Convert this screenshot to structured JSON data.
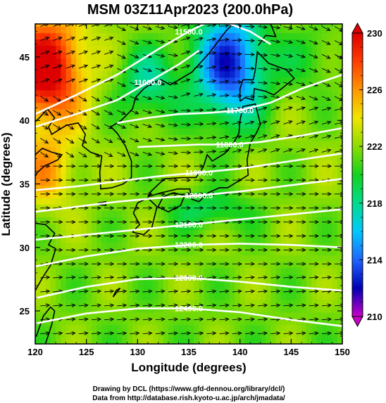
{
  "chart_data": {
    "type": "heatmap",
    "title": "MSM 03Z11Apr2023 (200.0hPa)",
    "xlabel": "Longitude (degrees)",
    "ylabel": "Latitude  (degrees)",
    "xlim": [
      120,
      150
    ],
    "ylim": [
      22.4,
      47.6
    ],
    "xticks": [
      "120",
      "125",
      "130",
      "135",
      "140",
      "145",
      "150"
    ],
    "yticks": [
      "25",
      "30",
      "35",
      "40",
      "45"
    ],
    "colorbar": {
      "min": 210,
      "max": 230,
      "ticks": [
        "210",
        "214",
        "218",
        "222",
        "226",
        "230"
      ],
      "colors": [
        "#c800c8",
        "#0000b4",
        "#1e64ff",
        "#00c8ff",
        "#00dc8c",
        "#14d21e",
        "#8cdc00",
        "#f0e600",
        "#ff9600",
        "#ff3c00",
        "#dc0000"
      ]
    },
    "contours": [
      {
        "label": "11500.0",
        "lon": [
          120,
          124,
          128,
          132,
          135,
          137,
          139,
          141,
          143
        ],
        "lat": [
          40.5,
          42.0,
          43.6,
          45.6,
          47.0,
          47.8,
          47.6,
          47.0,
          46.0
        ]
      },
      {
        "label": "11600.0",
        "lon": [
          120,
          124,
          128,
          131,
          134,
          136
        ],
        "lat": [
          39.5,
          40.5,
          41.6,
          43.0,
          44.4,
          45.5
        ]
      },
      {
        "label": "11700.0",
        "lon": [
          128,
          131,
          134,
          137,
          140,
          143,
          146,
          150
        ],
        "lat": [
          39.8,
          40.2,
          40.5,
          40.6,
          40.8,
          41.4,
          42.5,
          43.6
        ]
      },
      {
        "label": "11800.0",
        "lon": [
          130,
          133,
          136,
          139,
          142,
          146,
          150
        ],
        "lat": [
          37.9,
          38.0,
          38.1,
          38.1,
          38.3,
          38.8,
          39.4
        ]
      },
      {
        "label": "11900.0",
        "lon": [
          120,
          124,
          128,
          132,
          136,
          140,
          145,
          150
        ],
        "lat": [
          34.5,
          34.8,
          35.2,
          35.6,
          35.9,
          36.2,
          36.8,
          37.4
        ]
      },
      {
        "label": "12000.0",
        "lon": [
          120,
          124,
          128,
          132,
          136,
          140,
          145,
          150
        ],
        "lat": [
          32.8,
          33.2,
          33.6,
          33.9,
          34.1,
          34.4,
          34.9,
          35.4
        ]
      },
      {
        "label": "12100.0",
        "lon": [
          120,
          125,
          130,
          135,
          140,
          145,
          150
        ],
        "lat": [
          30.6,
          31.0,
          31.4,
          31.8,
          32.2,
          32.6,
          33.0
        ]
      },
      {
        "label": "12200.0",
        "lon": [
          120,
          125,
          130,
          135,
          140,
          145,
          150
        ],
        "lat": [
          28.5,
          29.3,
          29.9,
          30.2,
          30.3,
          30.2,
          30.0
        ]
      },
      {
        "label": "12300.0",
        "lon": [
          120,
          125,
          130,
          135,
          140,
          145,
          150
        ],
        "lat": [
          26.0,
          26.9,
          27.5,
          27.6,
          27.3,
          26.9,
          26.6
        ]
      },
      {
        "label": "12400.0",
        "lon": [
          120,
          125,
          130,
          135,
          140,
          145,
          150
        ],
        "lat": [
          24.0,
          24.8,
          25.2,
          25.2,
          24.9,
          24.3,
          23.8
        ]
      }
    ]
  },
  "credits": {
    "line1": "Drawing by DCL (https://www.gfd-dennou.org/library/dcl/)",
    "line2": "Data from http://database.rish.kyoto-u.ac.jp/arch/jmadata/"
  }
}
